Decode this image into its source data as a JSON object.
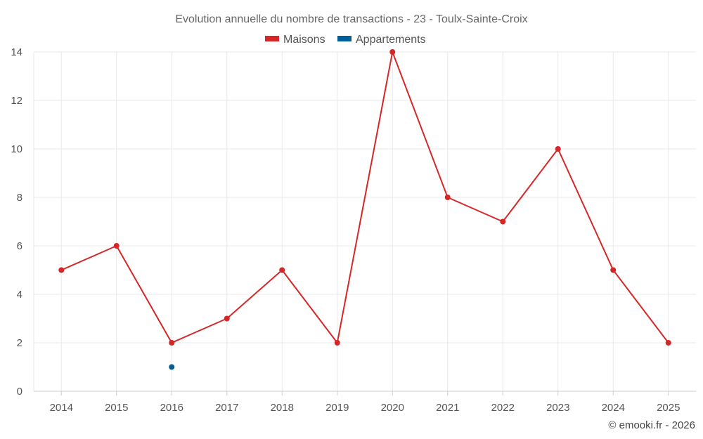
{
  "chart_data": {
    "type": "line",
    "title": "Evolution annuelle du nombre de transactions - 23 - Toulx-Sainte-Croix",
    "categories": [
      "2014",
      "2015",
      "2016",
      "2017",
      "2018",
      "2019",
      "2020",
      "2021",
      "2022",
      "2023",
      "2024",
      "2025"
    ],
    "series": [
      {
        "name": "Maisons",
        "color": "#d62728",
        "values": [
          5,
          6,
          2,
          3,
          5,
          2,
          14,
          8,
          7,
          10,
          5,
          2
        ]
      },
      {
        "name": "Appartements",
        "color": "#005f99",
        "values": [
          null,
          null,
          1,
          null,
          null,
          null,
          null,
          null,
          null,
          null,
          null,
          null
        ]
      }
    ],
    "ylim": [
      0,
      14
    ],
    "yticks": [
      0,
      2,
      4,
      6,
      8,
      10,
      12,
      14
    ],
    "xlabel": "",
    "ylabel": "",
    "grid": true,
    "legend_position": "top-center"
  },
  "credit": "© emooki.fr - 2026"
}
